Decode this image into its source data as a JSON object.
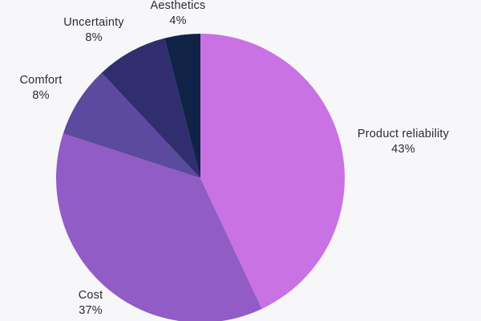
{
  "chart_data": {
    "type": "pie",
    "title": "",
    "legend": "none",
    "direction": "clockwise",
    "start_angle_deg": 0,
    "background_color": "#f7f6f8",
    "label_text_color": "#2d2b33",
    "categories": [
      "Product reliability",
      "Cost",
      "Comfort",
      "Uncertainty",
      "Aesthetics"
    ],
    "values": [
      43,
      37,
      8,
      8,
      4
    ],
    "slices": [
      {
        "label": "Product reliability",
        "value": 43,
        "display": "43%",
        "color": "#c972e3"
      },
      {
        "label": "Cost",
        "value": 37,
        "display": "37%",
        "color": "#915cc6"
      },
      {
        "label": "Comfort",
        "value": 8,
        "display": "8%",
        "color": "#5b4a9e"
      },
      {
        "label": "Uncertainty",
        "value": 8,
        "display": "8%",
        "color": "#302e6e"
      },
      {
        "label": "Aesthetics",
        "value": 4,
        "display": "4%",
        "color": "#102347"
      }
    ]
  }
}
